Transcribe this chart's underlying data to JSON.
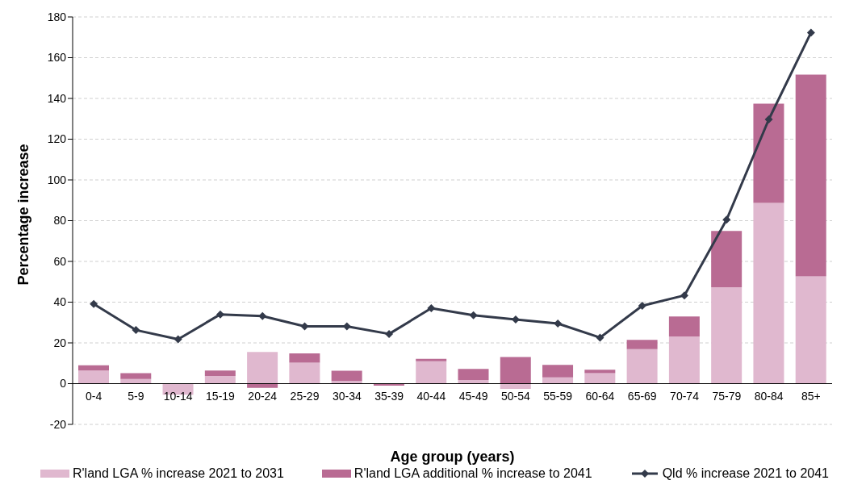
{
  "chart_data": {
    "type": "bar",
    "stacked": true,
    "xlabel": "Age group (years)",
    "ylabel": "Percentage increase",
    "categories": [
      "0-4",
      "5-9",
      "10-14",
      "15-19",
      "20-24",
      "25-29",
      "30-34",
      "35-39",
      "40-44",
      "45-49",
      "50-54",
      "55-59",
      "60-64",
      "65-69",
      "70-74",
      "75-79",
      "80-84",
      "85+"
    ],
    "series": [
      {
        "name": "R'land LGA % increase 2021 to 2031",
        "color": "#e0b8cf",
        "values": [
          6.4,
          2.3,
          -5.4,
          3.8,
          15.5,
          10.3,
          1.3,
          null,
          11.0,
          1.8,
          -2.6,
          3.1,
          5.1,
          16.9,
          23.2,
          47.3,
          88.7,
          52.7
        ]
      },
      {
        "name": "R'land LGA additional % increase to 2041",
        "color": "#b96b93",
        "values": [
          2.6,
          2.8,
          null,
          2.6,
          -2.1,
          4.6,
          5.0,
          -1.0,
          1.2,
          5.4,
          13.1,
          6.1,
          1.7,
          4.6,
          9.8,
          27.7,
          48.7,
          99.0
        ]
      },
      {
        "name": "Qld % increase 2021 to 2041",
        "type": "line",
        "color": "#333a4a",
        "values": [
          39.1,
          26.3,
          21.8,
          34.0,
          33.2,
          28.1,
          28.1,
          24.4,
          37.0,
          33.6,
          31.5,
          29.5,
          22.6,
          38.2,
          43.3,
          80.5,
          129.7,
          172.3
        ]
      }
    ],
    "ylim": [
      -20,
      180
    ],
    "yticks": [
      -20,
      0,
      20,
      40,
      60,
      80,
      100,
      120,
      140,
      160,
      180
    ],
    "grid": "y",
    "legend": "bottom",
    "marker": "diamond",
    "line_style": "solid"
  }
}
